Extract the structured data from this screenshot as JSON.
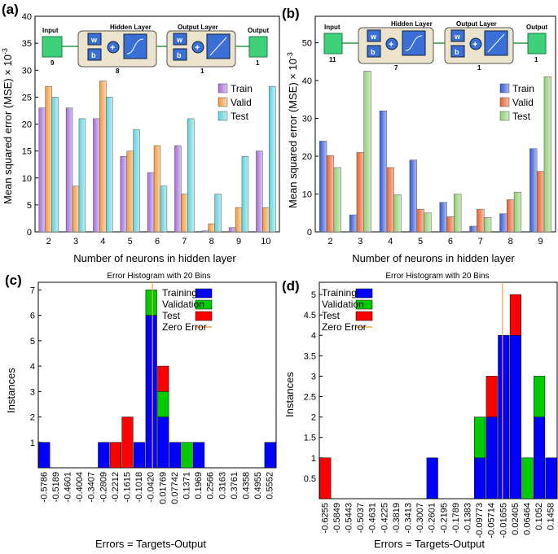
{
  "panels": {
    "a": {
      "label": "(a)",
      "diagram": {
        "input": "Input",
        "hidden": "Hidden Layer",
        "output_layer": "Output Layer",
        "output": "Output",
        "n_input": "9",
        "n_hidden": "8",
        "n_out_layer": "1",
        "n_output": "1",
        "w": "w",
        "b": "b"
      }
    },
    "b": {
      "label": "(b)",
      "diagram": {
        "input": "Input",
        "hidden": "Hidden Layer",
        "output_layer": "Output Layer",
        "output": "Output",
        "n_input": "11",
        "n_hidden": "7",
        "n_out_layer": "1",
        "n_output": "1",
        "w": "w",
        "b": "b"
      }
    },
    "c": {
      "label": "(c)"
    },
    "d": {
      "label": "(d)"
    }
  },
  "chart_data": [
    {
      "id": "a",
      "type": "bar",
      "ylabel": "Mean squared error (MSE) × 10",
      "ylabel_sup": "-3",
      "xlabel": "Number of neurons in hidden layer",
      "categories": [
        "2",
        "3",
        "4",
        "5",
        "6",
        "7",
        "8",
        "9",
        "10"
      ],
      "ylim": [
        0,
        40
      ],
      "yticks": [
        0,
        5,
        10,
        15,
        20,
        25,
        30,
        35,
        40
      ],
      "series": [
        {
          "name": "Train",
          "color": "#a56cd9",
          "values": [
            23,
            23,
            21,
            14,
            11,
            16,
            0.2,
            0.8,
            15
          ]
        },
        {
          "name": "Valid",
          "color": "#f29a3a",
          "values": [
            27,
            8.5,
            28,
            15,
            16,
            7,
            1.5,
            4.5,
            4.5
          ]
        },
        {
          "name": "Test",
          "color": "#5ed2dd",
          "values": [
            25,
            21,
            25,
            19,
            8.5,
            21,
            7,
            14,
            27
          ]
        }
      ],
      "legend_position": "top-right"
    },
    {
      "id": "b",
      "type": "bar",
      "ylabel": "Mean squared error (MSE) × 10",
      "ylabel_sup": "-3",
      "xlabel": "Number of neurons in hidden layer",
      "categories": [
        "2",
        "3",
        "4",
        "5",
        "6",
        "7",
        "8",
        "9"
      ],
      "ylim": [
        0,
        57
      ],
      "yticks": [
        0,
        10,
        20,
        30,
        40,
        50
      ],
      "series": [
        {
          "name": "Train",
          "color": "#3158d8",
          "values": [
            24,
            4.5,
            32,
            19,
            7.8,
            1.5,
            4.8,
            22
          ]
        },
        {
          "name": "Valid",
          "color": "#e8612a",
          "values": [
            20.2,
            21,
            17,
            6,
            4,
            6,
            8.5,
            16
          ]
        },
        {
          "name": "Test",
          "color": "#8fcf72",
          "values": [
            17,
            42.5,
            9.8,
            5,
            10,
            3.8,
            10.5,
            41
          ]
        }
      ],
      "legend_position": "top-right"
    },
    {
      "id": "c",
      "type": "bar",
      "title": "Error Histogram with 20 Bins",
      "ylabel": "Instances",
      "xlabel": "Errors = Targets-Output",
      "categories": [
        "-0.5786",
        "-0.5189",
        "-0.4601",
        "-0.4004",
        "-0.3407",
        "-0.2809",
        "-0.2212",
        "-0.1615",
        "-0.1018",
        "-0.0420",
        "0.01769",
        "0.07742",
        "0.1371",
        "0.1969",
        "0.2566",
        "0.3163",
        "0.3761",
        "0.4358",
        "0.4955",
        "0.5552"
      ],
      "ylim": [
        0,
        7.3
      ],
      "yticks": [
        1,
        2,
        3,
        4,
        5,
        6,
        7
      ],
      "zero_error_bin": 9.6,
      "series": [
        {
          "name": "Training",
          "color": "#0000ff",
          "values": [
            1,
            0,
            0,
            0,
            0,
            1,
            0,
            0,
            1,
            6,
            2,
            1,
            0,
            1,
            0,
            0,
            0,
            0,
            0,
            1
          ]
        },
        {
          "name": "Validation",
          "color": "#00cc00",
          "values": [
            0,
            0,
            0,
            0,
            0,
            0,
            0,
            0,
            0,
            1,
            1,
            0,
            1,
            0,
            0,
            0,
            0,
            0,
            0,
            0
          ]
        },
        {
          "name": "Test",
          "color": "#ff0000",
          "values": [
            0,
            0,
            0,
            0,
            0,
            0,
            1,
            2,
            0,
            0,
            1,
            0,
            0,
            0,
            0,
            0,
            0,
            0,
            0,
            0
          ]
        }
      ],
      "zero_error_label": "Zero Error",
      "zero_error_color": "#f5a040",
      "legend_position": "top-right"
    },
    {
      "id": "d",
      "type": "bar",
      "title": "Error Histogram with 20 Bins",
      "ylabel": "Instances",
      "xlabel": "Errors = Targets-Output",
      "categories": [
        "-0.6255",
        "-0.5849",
        "-0.5443",
        "-0.5037",
        "-0.4631",
        "-0.4225",
        "-0.3819",
        "-0.3413",
        "-0.3007",
        "-0.2601",
        "-0.2195",
        "-0.1789",
        "-0.1383",
        "-0.09773",
        "-0.05714",
        "-0.01655",
        "0.02405",
        "0.06464",
        "0.1052",
        "0.1458"
      ],
      "ylim": [
        0,
        5.3
      ],
      "yticks": [
        0.5,
        1,
        1.5,
        2,
        2.5,
        3,
        3.5,
        4,
        4.5,
        5
      ],
      "zero_error_bin": 15.4,
      "series": [
        {
          "name": "Training",
          "color": "#0000ff",
          "values": [
            0,
            0,
            0,
            0,
            0,
            0,
            0,
            0,
            0,
            1,
            0,
            0,
            0,
            1,
            2,
            4,
            4,
            0,
            2,
            1
          ]
        },
        {
          "name": "Validation",
          "color": "#00cc00",
          "values": [
            0,
            0,
            0,
            0,
            0,
            0,
            0,
            0,
            0,
            0,
            0,
            0,
            0,
            1,
            0,
            0,
            0,
            1,
            1,
            0
          ]
        },
        {
          "name": "Test",
          "color": "#ff0000",
          "values": [
            1,
            0,
            0,
            0,
            0,
            0,
            0,
            0,
            0,
            0,
            0,
            0,
            0,
            0,
            1,
            0,
            1,
            0,
            0,
            0
          ]
        }
      ],
      "zero_error_label": "Zero Error",
      "zero_error_color": "#f5a040",
      "legend_position": "top-left"
    }
  ]
}
